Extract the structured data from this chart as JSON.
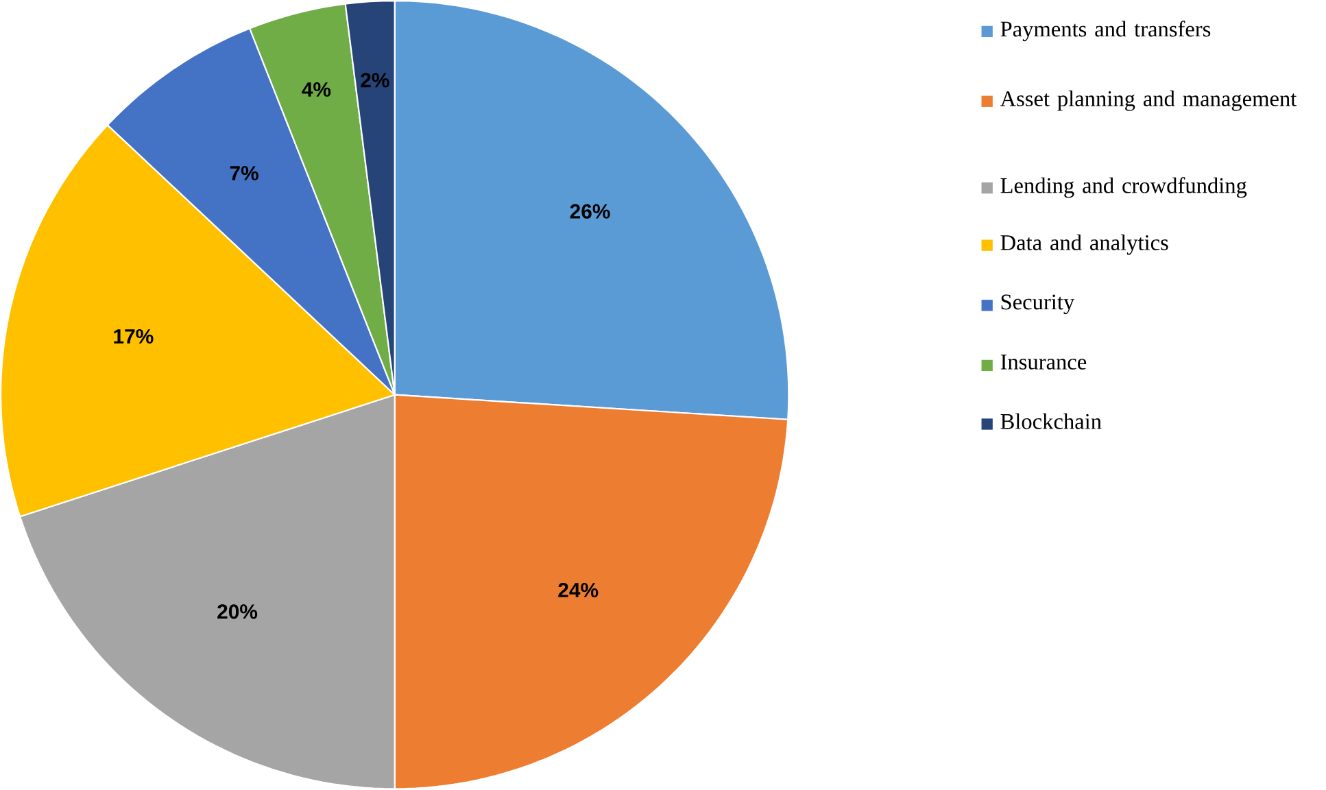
{
  "chart_data": {
    "type": "pie",
    "categories": [
      "Payments and transfers",
      "Asset planning and management",
      "Lending and crowdfunding",
      "Data and analytics",
      "Security",
      "Insurance",
      "Blockchain"
    ],
    "values": [
      26,
      24,
      20,
      17,
      7,
      4,
      2
    ],
    "value_labels": [
      "26%",
      "24%",
      "20%",
      "17%",
      "7%",
      "4%",
      "2%"
    ],
    "colors": [
      "#5b9bd5",
      "#ed7d31",
      "#a5a5a5",
      "#ffc000",
      "#4472c4",
      "#70ad47",
      "#264478"
    ],
    "legend": "right"
  }
}
